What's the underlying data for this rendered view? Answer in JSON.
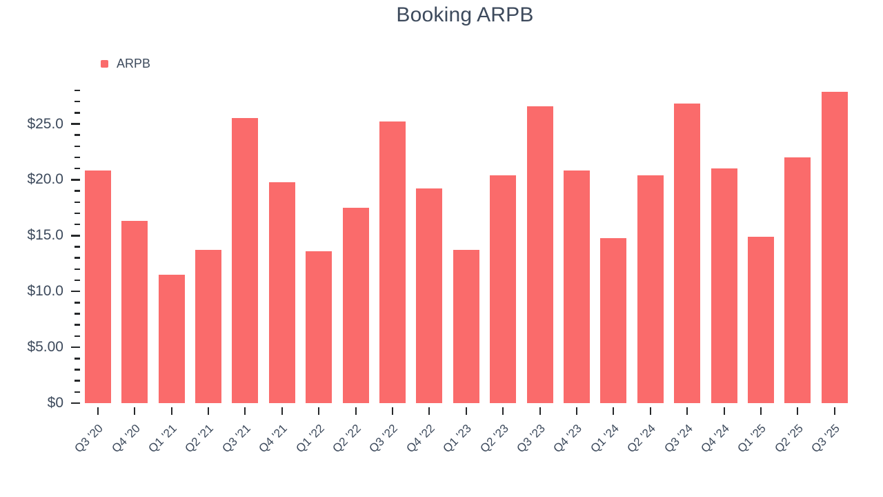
{
  "title": "Booking ARPB",
  "legend": {
    "items": [
      {
        "label": "ARPB",
        "color": "#fa6b6b"
      }
    ]
  },
  "colors": {
    "bar": "#fa6b6b",
    "text": "#3d4a5c",
    "tick": "#26282a",
    "background": "#ffffff"
  },
  "chart_data": {
    "type": "bar",
    "title": "Booking ARPB",
    "categories": [
      "Q3 '20",
      "Q4 '20",
      "Q1 '21",
      "Q2 '21",
      "Q3 '21",
      "Q4 '21",
      "Q1 '22",
      "Q2 '22",
      "Q3 '22",
      "Q4 '22",
      "Q1 '23",
      "Q2 '23",
      "Q3 '23",
      "Q4 '23",
      "Q1 '24",
      "Q2 '24",
      "Q3 '24",
      "Q4 '24",
      "Q1 '25",
      "Q2 '25",
      "Q3 '25"
    ],
    "series": [
      {
        "name": "ARPB",
        "values": [
          20.8,
          16.3,
          11.5,
          13.7,
          25.5,
          19.8,
          13.6,
          17.5,
          25.2,
          19.2,
          13.7,
          20.4,
          26.6,
          20.8,
          14.8,
          20.4,
          26.8,
          21.0,
          14.9,
          22.0,
          27.9
        ]
      }
    ],
    "xlabel": "",
    "ylabel": "",
    "ylim": [
      0,
      28
    ],
    "y_major_ticks": [
      0,
      5,
      10,
      15,
      20,
      25
    ],
    "y_major_tick_labels": [
      "$0",
      "$5.00",
      "$10.0",
      "$15.0",
      "$20.0",
      "$25.0"
    ],
    "y_minor_tick_step": 1,
    "grid": false,
    "legend_position": "top-left"
  }
}
